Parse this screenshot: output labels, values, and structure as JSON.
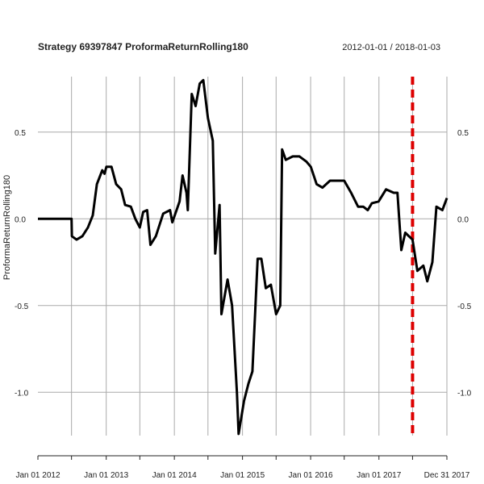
{
  "chart_data": {
    "type": "line",
    "title": "Strategy 69397847 ProformaReturnRolling180",
    "date_range": "2012-01-01 / 2018-01-03",
    "ylabel": "ProformaReturnRolling180",
    "ylim": [
      -1.25,
      0.82
    ],
    "xlim": [
      "2012-01-01",
      "2017-12-31"
    ],
    "y_ticks": [
      -1.0,
      -0.5,
      0.0,
      0.5
    ],
    "y_tick_labels": [
      "-1.0",
      "-0.5",
      "0.0",
      "0.5"
    ],
    "x_ticks": [
      "2012-01-01",
      "2013-01-01",
      "2014-01-01",
      "2015-01-01",
      "2016-01-01",
      "2017-01-01",
      "2017-12-31"
    ],
    "x_tick_labels": [
      "Jan 01 2012",
      "Jan 01 2013",
      "Jan 01 2014",
      "Jan 01 2015",
      "Jan 01 2016",
      "Jan 01 2017",
      "Dec 31 2017"
    ],
    "extra_x_ticks": [
      "2012-06-29",
      "2013-06-30",
      "2014-06-30",
      "2015-06-30",
      "2016-06-29",
      "2017-06-30"
    ],
    "grid": true,
    "line_color": "#000000",
    "marker_date": "2017-06-30",
    "marker_color": "#dd0000",
    "series": [
      {
        "points": [
          [
            "2012-01-01",
            0.0
          ],
          [
            "2012-06-29",
            0.0
          ],
          [
            "2012-07-01",
            -0.1
          ],
          [
            "2012-07-26",
            -0.12
          ],
          [
            "2012-08-26",
            -0.1
          ],
          [
            "2012-09-25",
            -0.05
          ],
          [
            "2012-10-21",
            0.02
          ],
          [
            "2012-11-12",
            0.2
          ],
          [
            "2012-12-11",
            0.28
          ],
          [
            "2012-12-23",
            0.26
          ],
          [
            "2013-01-02",
            0.3
          ],
          [
            "2013-01-29",
            0.3
          ],
          [
            "2013-02-23",
            0.2
          ],
          [
            "2013-03-22",
            0.17
          ],
          [
            "2013-04-12",
            0.08
          ],
          [
            "2013-05-13",
            0.07
          ],
          [
            "2013-06-06",
            0.0
          ],
          [
            "2013-06-30",
            -0.05
          ],
          [
            "2013-07-18",
            0.04
          ],
          [
            "2013-08-08",
            0.05
          ],
          [
            "2013-08-26",
            -0.15
          ],
          [
            "2013-09-24",
            -0.1
          ],
          [
            "2013-11-02",
            0.03
          ],
          [
            "2013-12-09",
            0.05
          ],
          [
            "2013-12-21",
            -0.02
          ],
          [
            "2014-01-29",
            0.1
          ],
          [
            "2014-02-14",
            0.25
          ],
          [
            "2014-03-07",
            0.15
          ],
          [
            "2014-03-14",
            0.05
          ],
          [
            "2014-04-04",
            0.72
          ],
          [
            "2014-04-25",
            0.65
          ],
          [
            "2014-05-17",
            0.78
          ],
          [
            "2014-06-05",
            0.8
          ],
          [
            "2014-06-30",
            0.58
          ],
          [
            "2014-07-26",
            0.45
          ],
          [
            "2014-08-08",
            -0.2
          ],
          [
            "2014-08-31",
            0.08
          ],
          [
            "2014-09-10",
            -0.55
          ],
          [
            "2014-10-13",
            -0.35
          ],
          [
            "2014-11-06",
            -0.5
          ],
          [
            "2014-12-02",
            -1.0
          ],
          [
            "2014-12-11",
            -1.24
          ],
          [
            "2015-01-09",
            -1.05
          ],
          [
            "2015-02-02",
            -0.95
          ],
          [
            "2015-02-23",
            -0.88
          ],
          [
            "2015-03-23",
            -0.23
          ],
          [
            "2015-04-12",
            -0.23
          ],
          [
            "2015-05-06",
            -0.4
          ],
          [
            "2015-06-02",
            -0.38
          ],
          [
            "2015-06-30",
            -0.55
          ],
          [
            "2015-07-22",
            -0.5
          ],
          [
            "2015-08-01",
            0.4
          ],
          [
            "2015-08-21",
            0.34
          ],
          [
            "2015-09-27",
            0.36
          ],
          [
            "2015-11-02",
            0.36
          ],
          [
            "2015-12-09",
            0.33
          ],
          [
            "2016-01-02",
            0.3
          ],
          [
            "2016-02-02",
            0.2
          ],
          [
            "2016-03-04",
            0.18
          ],
          [
            "2016-04-14",
            0.22
          ],
          [
            "2016-06-29",
            0.22
          ],
          [
            "2016-08-05",
            0.15
          ],
          [
            "2016-09-11",
            0.07
          ],
          [
            "2016-10-09",
            0.07
          ],
          [
            "2016-11-02",
            0.05
          ],
          [
            "2016-11-24",
            0.09
          ],
          [
            "2016-12-30",
            0.1
          ],
          [
            "2017-02-08",
            0.17
          ],
          [
            "2017-03-21",
            0.15
          ],
          [
            "2017-04-10",
            0.15
          ],
          [
            "2017-05-01",
            -0.18
          ],
          [
            "2017-05-22",
            -0.08
          ],
          [
            "2017-06-30",
            -0.12
          ],
          [
            "2017-07-26",
            -0.3
          ],
          [
            "2017-08-27",
            -0.27
          ],
          [
            "2017-09-17",
            -0.36
          ],
          [
            "2017-10-14",
            -0.25
          ],
          [
            "2017-11-05",
            0.07
          ],
          [
            "2017-12-07",
            0.05
          ],
          [
            "2017-12-31",
            0.12
          ]
        ]
      }
    ]
  }
}
